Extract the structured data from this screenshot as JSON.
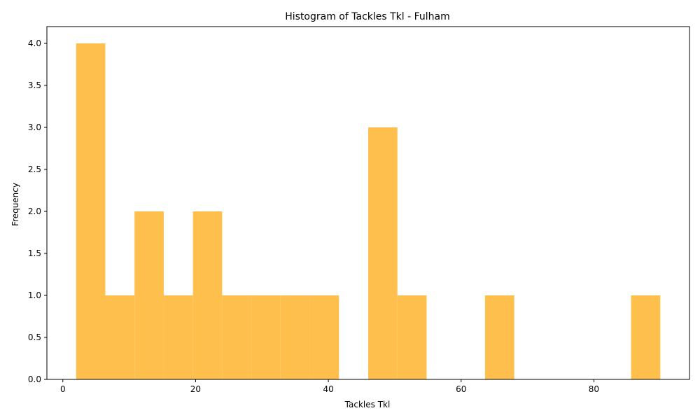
{
  "chart_data": {
    "type": "bar",
    "subtype": "histogram",
    "title": "Histogram of Tackles Tkl - Fulham",
    "xlabel": "Tackles Tkl",
    "ylabel": "Frequency",
    "bin_edges": [
      2,
      6.4,
      10.8,
      15.2,
      19.6,
      24,
      28.4,
      32.8,
      37.2,
      41.6,
      46,
      50.4,
      54.8,
      59.2,
      63.6,
      68,
      72.4,
      76.8,
      81.2,
      85.6,
      90
    ],
    "values": [
      4,
      1,
      2,
      1,
      2,
      1,
      1,
      1,
      1,
      0,
      3,
      1,
      0,
      0,
      1,
      0,
      0,
      0,
      0,
      1
    ],
    "xlim": [
      -2.4,
      94.4
    ],
    "ylim": [
      0,
      4.2
    ],
    "xticks": [
      0,
      20,
      40,
      60,
      80
    ],
    "xtick_labels": [
      "0",
      "20",
      "40",
      "60",
      "80"
    ],
    "yticks": [
      0,
      0.5,
      1,
      1.5,
      2,
      2.5,
      3,
      3.5,
      4
    ],
    "ytick_labels": [
      "0.0",
      "0.5",
      "1.0",
      "1.5",
      "2.0",
      "2.5",
      "3.0",
      "3.5",
      "4.0"
    ],
    "bar_color": "#ffbf4d",
    "grid": false,
    "legend": "none"
  }
}
